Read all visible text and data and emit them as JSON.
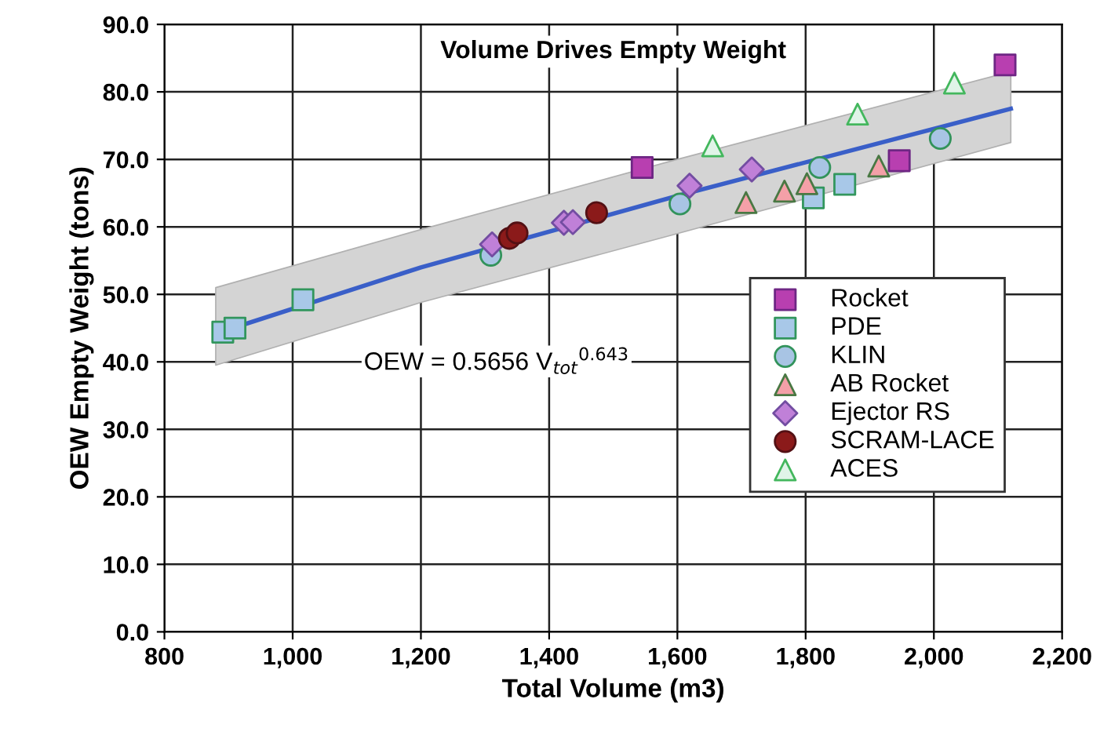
{
  "chart_data": {
    "type": "scatter",
    "title": "Volume Drives Empty Weight",
    "xlabel": "Total Volume (m3)",
    "ylabel": "OEW Empty Weight (tons)",
    "xlim": [
      800,
      2200
    ],
    "xticks": [
      {
        "value": 800,
        "label": "800"
      },
      {
        "value": 1000,
        "label": "1,000"
      },
      {
        "value": 1200,
        "label": "1,200"
      },
      {
        "value": 1400,
        "label": "1,400"
      },
      {
        "value": 1600,
        "label": "1,600"
      },
      {
        "value": 1800,
        "label": "1,800"
      },
      {
        "value": 2000,
        "label": "2,000"
      },
      {
        "value": 2200,
        "label": "2,200"
      }
    ],
    "ylim": [
      0,
      90
    ],
    "yticks": [
      {
        "value": 0,
        "label": "0.0"
      },
      {
        "value": 10,
        "label": "10.0"
      },
      {
        "value": 20,
        "label": "20.0"
      },
      {
        "value": 30,
        "label": "30.0"
      },
      {
        "value": 40,
        "label": "40.0"
      },
      {
        "value": 50,
        "label": "50.0"
      },
      {
        "value": 60,
        "label": "60.0"
      },
      {
        "value": 70,
        "label": "70.0"
      },
      {
        "value": 80,
        "label": "80.0"
      },
      {
        "value": 90,
        "label": "90.0"
      }
    ],
    "grid": true,
    "legend": "bottom right",
    "annotations": [
      "OEW = 0.5656 V$_{tot}$$^{0.643}$"
    ],
    "series": [
      {
        "type": "line",
        "color": "#3a5fc8",
        "marker": "none",
        "line_style": "solid",
        "x": [
          880,
          1200,
          1600,
          2120
        ],
        "values": [
          44.2,
          54.0,
          64.6,
          77.5
        ],
        "lower": [
          39.5,
          48.8,
          59.0,
          72.5
        ],
        "upper": [
          51.0,
          59.6,
          70.0,
          83.0
        ]
      },
      {
        "name": "Rocket",
        "color": "#b83fb0",
        "marker": "square",
        "x": [
          1545,
          1946,
          2111
        ],
        "values": [
          68.8,
          69.8,
          84.0
        ]
      },
      {
        "name": "PDE",
        "color": "#a8c8e8",
        "marker": "square",
        "x": [
          891,
          910,
          1016,
          1812,
          1861
        ],
        "values": [
          44.4,
          45.0,
          49.2,
          64.3,
          66.3
        ]
      },
      {
        "name": "KLIN",
        "color": "#a8c4e4",
        "marker": "circle",
        "x": [
          1309,
          1604,
          1822,
          2010
        ],
        "values": [
          55.8,
          63.4,
          68.8,
          73.1
        ]
      },
      {
        "name": "AB Rocket",
        "color": "#f4a0a8",
        "marker": "triangle",
        "x": [
          1707,
          1767,
          1802,
          1914
        ],
        "values": [
          63.6,
          65.3,
          66.4,
          69.0
        ]
      },
      {
        "name": "Ejector RS",
        "color": "#c080d8",
        "marker": "diamond",
        "x": [
          1311,
          1423,
          1437,
          1619,
          1716
        ],
        "values": [
          57.4,
          60.6,
          60.7,
          66.1,
          68.5
        ]
      },
      {
        "name": "SCRAM-LACE",
        "color": "#8b1a1a",
        "marker": "circle",
        "x": [
          1338,
          1350,
          1474
        ],
        "values": [
          58.3,
          59.1,
          62.1
        ]
      },
      {
        "name": "ACES",
        "color": "#e0f4e8",
        "marker": "triangle",
        "x": [
          1655,
          1881,
          2032
        ],
        "values": [
          72.0,
          76.7,
          81.3
        ]
      }
    ]
  }
}
